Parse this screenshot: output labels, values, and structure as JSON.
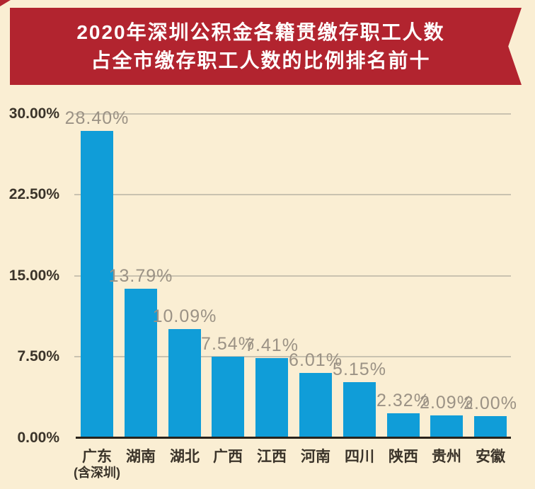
{
  "title": {
    "line1": "2020年深圳公积金各籍贯缴存职工人数",
    "line2": "占全市缴存职工人数的比例排名前十"
  },
  "chart_data": {
    "type": "bar",
    "title": "2020年深圳公积金各籍贯缴存职工人数占全市缴存职工人数的比例排名前十",
    "categories": [
      "广东",
      "湖南",
      "湖北",
      "广西",
      "江西",
      "河南",
      "四川",
      "陕西",
      "贵州",
      "安徽"
    ],
    "category_note": {
      "index": 0,
      "text": "(含深圳)"
    },
    "values": [
      28.4,
      13.79,
      10.09,
      7.54,
      7.41,
      6.01,
      5.15,
      2.32,
      2.09,
      2.0
    ],
    "value_labels": [
      "28.40%",
      "13.79%",
      "10.09%",
      "7.54%",
      "7.41%",
      "6.01%",
      "5.15%",
      "2.32%",
      "2.09%",
      "2.00%"
    ],
    "xlabel": "",
    "ylabel": "",
    "ylim": [
      0,
      30
    ],
    "y_ticks": [
      {
        "value": 0,
        "label": "0.00%"
      },
      {
        "value": 7.5,
        "label": "7.50%"
      },
      {
        "value": 15,
        "label": "15.00%"
      },
      {
        "value": 22.5,
        "label": "22.50%"
      },
      {
        "value": 30,
        "label": "30.00%"
      }
    ],
    "grid": true,
    "legend": false
  },
  "colors": {
    "background": "#FAEED3",
    "banner": "#B2242F",
    "bar": "#109DD8",
    "value_label": "#9B9285",
    "axis_text": "#3B342A",
    "gridline": "#C9C2B0",
    "axis_line": "#29231A",
    "title_text": "#FFFFFF"
  }
}
